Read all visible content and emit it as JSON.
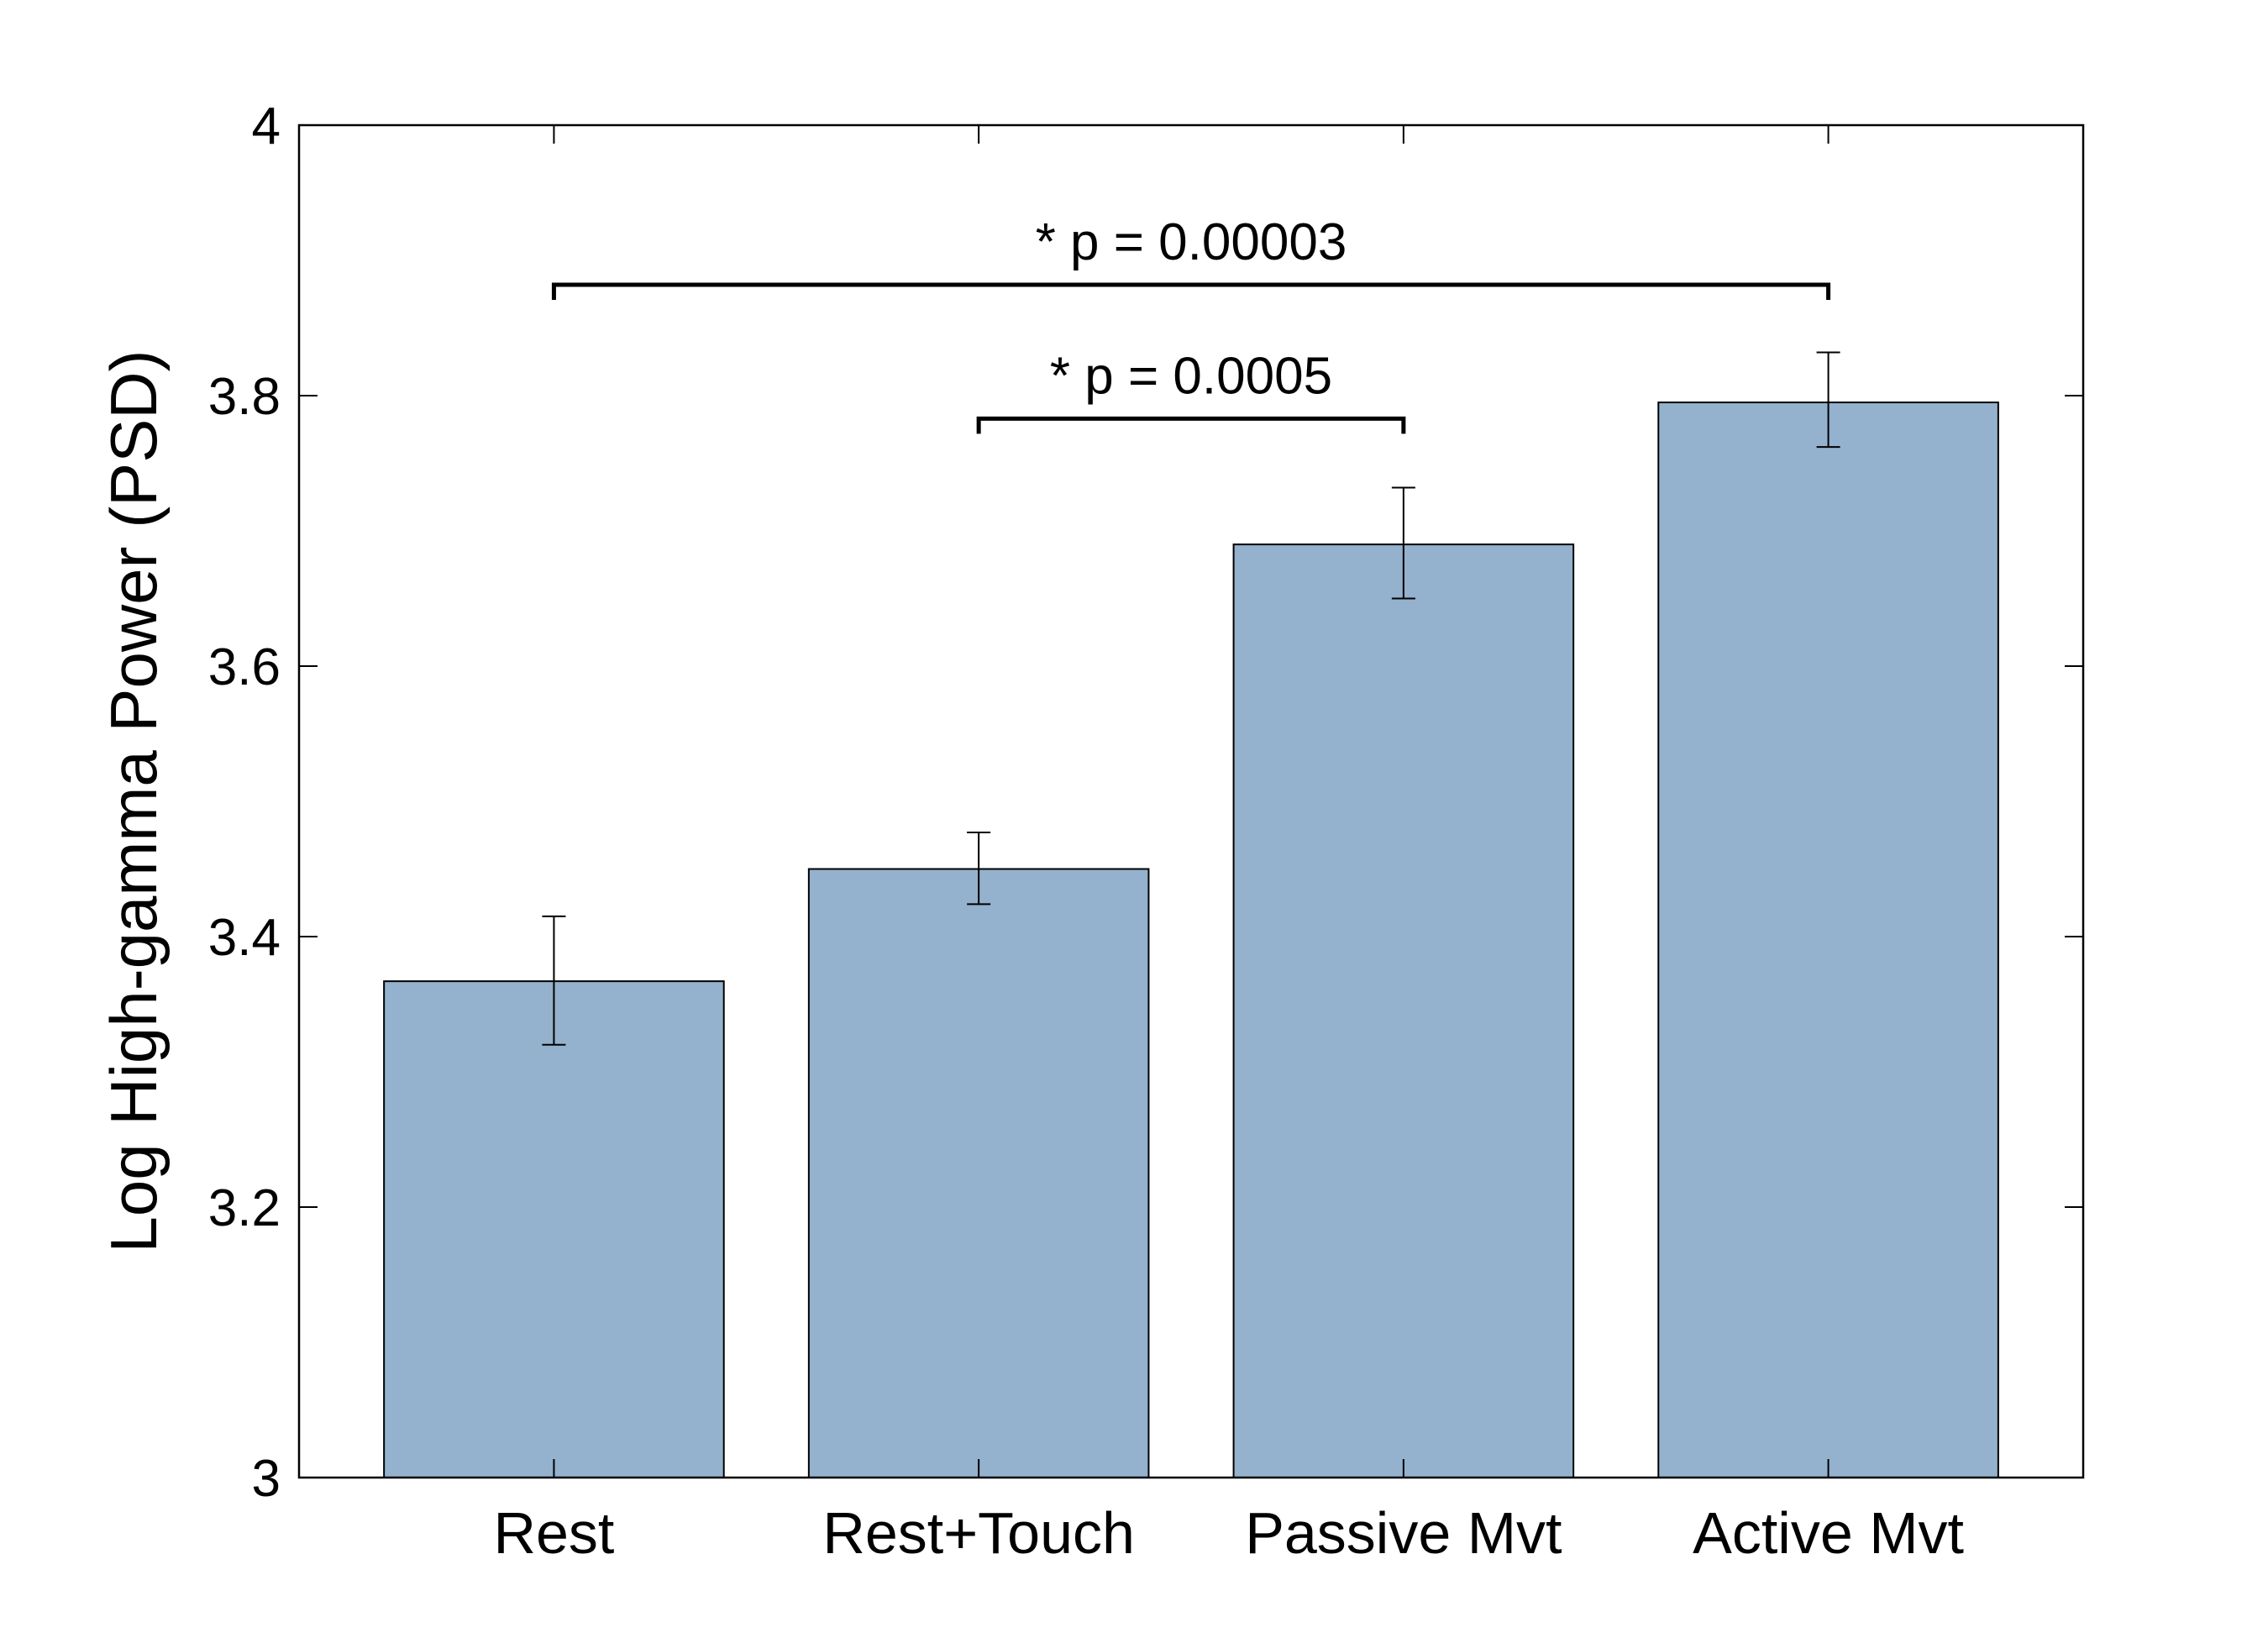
{
  "chart_data": {
    "type": "bar",
    "title": "",
    "xlabel": "",
    "ylabel": "Log High-gamma Power (PSD)",
    "categories": [
      "Rest",
      "Rest+Touch",
      "Passive Mvt",
      "Active Mvt"
    ],
    "values": [
      3.367,
      3.45,
      3.69,
      3.795
    ],
    "error_low": [
      3.32,
      3.424,
      3.65,
      3.762
    ],
    "error_high": [
      3.415,
      3.477,
      3.732,
      3.832
    ],
    "ylim": [
      3,
      4
    ],
    "yticks": [
      "3",
      "3.2",
      "3.4",
      "3.6",
      "3.8",
      "4"
    ],
    "ytick_values": [
      3,
      3.2,
      3.4,
      3.6,
      3.8,
      4
    ],
    "grid": false,
    "legend": "none",
    "bar_color": "#94b1cd",
    "annotations": [
      {
        "label": "* p = 0.00003",
        "from": 0,
        "to": 3,
        "y": 3.882
      },
      {
        "label": "* p = 0.0005",
        "from": 1,
        "to": 2,
        "y": 3.783
      }
    ]
  }
}
